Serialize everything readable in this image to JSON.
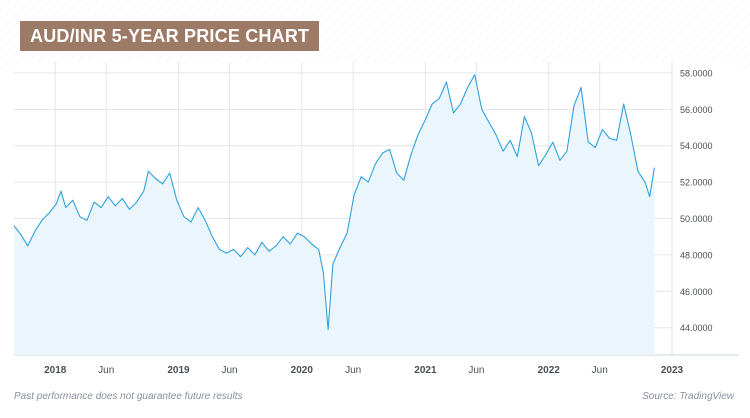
{
  "title": "AUD/INR 5-YEAR PRICE CHART",
  "footer": {
    "disclaimer": "Past performance does not guarantee future results",
    "source": "Source: TradingView"
  },
  "colors": {
    "badge": "#9c7a66",
    "line": "#2fa3de",
    "fill": "#eaf5fc",
    "grid": "#e3e6ea",
    "axis_text": "#4a4f57"
  },
  "chart_data": {
    "type": "area",
    "title": "AUD/INR 5-YEAR PRICE CHART",
    "xlabel": "",
    "ylabel": "",
    "grid": true,
    "ylim": [
      42.5,
      58.6
    ],
    "xlim": [
      "2017-09-01",
      "2023-01-01"
    ],
    "y_ticks": [
      "44.0000",
      "46.0000",
      "48.0000",
      "50.0000",
      "52.0000",
      "54.0000",
      "56.0000",
      "58.0000"
    ],
    "x_ticks": [
      {
        "date": "2018-01-01",
        "label": "2018",
        "bold": true
      },
      {
        "date": "2018-06-01",
        "label": "Jun",
        "bold": false
      },
      {
        "date": "2019-01-01",
        "label": "2019",
        "bold": true
      },
      {
        "date": "2019-06-01",
        "label": "Jun",
        "bold": false
      },
      {
        "date": "2020-01-01",
        "label": "2020",
        "bold": true
      },
      {
        "date": "2020-06-01",
        "label": "Jun",
        "bold": false
      },
      {
        "date": "2021-01-01",
        "label": "2021",
        "bold": true
      },
      {
        "date": "2021-06-01",
        "label": "Jun",
        "bold": false
      },
      {
        "date": "2022-01-01",
        "label": "2022",
        "bold": true
      },
      {
        "date": "2022-06-01",
        "label": "Jun",
        "bold": false
      },
      {
        "date": "2023-01-01",
        "label": "2023",
        "bold": true
      }
    ],
    "series": [
      {
        "points": [
          [
            "2017-09-01",
            49.6
          ],
          [
            "2017-09-22",
            49.1
          ],
          [
            "2017-10-12",
            48.5
          ],
          [
            "2017-11-02",
            49.3
          ],
          [
            "2017-11-23",
            49.9
          ],
          [
            "2017-12-14",
            50.3
          ],
          [
            "2018-01-04",
            50.8
          ],
          [
            "2018-01-18",
            51.5
          ],
          [
            "2018-02-01",
            50.6
          ],
          [
            "2018-02-22",
            51.0
          ],
          [
            "2018-03-15",
            50.1
          ],
          [
            "2018-04-05",
            49.9
          ],
          [
            "2018-04-26",
            50.9
          ],
          [
            "2018-05-17",
            50.6
          ],
          [
            "2018-06-07",
            51.2
          ],
          [
            "2018-06-28",
            50.7
          ],
          [
            "2018-07-19",
            51.1
          ],
          [
            "2018-08-09",
            50.5
          ],
          [
            "2018-08-30",
            50.9
          ],
          [
            "2018-09-20",
            51.5
          ],
          [
            "2018-10-04",
            52.6
          ],
          [
            "2018-10-25",
            52.2
          ],
          [
            "2018-11-15",
            51.9
          ],
          [
            "2018-12-06",
            52.5
          ],
          [
            "2018-12-27",
            51.0
          ],
          [
            "2019-01-17",
            50.1
          ],
          [
            "2019-02-07",
            49.8
          ],
          [
            "2019-02-28",
            50.6
          ],
          [
            "2019-03-21",
            49.9
          ],
          [
            "2019-04-11",
            49.0
          ],
          [
            "2019-05-02",
            48.3
          ],
          [
            "2019-05-23",
            48.1
          ],
          [
            "2019-06-13",
            48.3
          ],
          [
            "2019-07-04",
            47.9
          ],
          [
            "2019-07-25",
            48.4
          ],
          [
            "2019-08-15",
            48.0
          ],
          [
            "2019-09-05",
            48.7
          ],
          [
            "2019-09-26",
            48.2
          ],
          [
            "2019-10-17",
            48.5
          ],
          [
            "2019-11-07",
            49.0
          ],
          [
            "2019-11-28",
            48.6
          ],
          [
            "2019-12-19",
            49.2
          ],
          [
            "2020-01-09",
            49.0
          ],
          [
            "2020-01-30",
            48.6
          ],
          [
            "2020-02-20",
            48.3
          ],
          [
            "2020-03-05",
            47.0
          ],
          [
            "2020-03-19",
            43.9
          ],
          [
            "2020-04-02",
            47.5
          ],
          [
            "2020-04-23",
            48.4
          ],
          [
            "2020-05-14",
            49.2
          ],
          [
            "2020-06-04",
            51.3
          ],
          [
            "2020-06-25",
            52.3
          ],
          [
            "2020-07-16",
            52.0
          ],
          [
            "2020-08-06",
            53.0
          ],
          [
            "2020-08-27",
            53.6
          ],
          [
            "2020-09-17",
            53.8
          ],
          [
            "2020-10-08",
            52.5
          ],
          [
            "2020-10-29",
            52.1
          ],
          [
            "2020-11-19",
            53.5
          ],
          [
            "2020-12-10",
            54.6
          ],
          [
            "2020-12-31",
            55.4
          ],
          [
            "2021-01-21",
            56.3
          ],
          [
            "2021-02-11",
            56.6
          ],
          [
            "2021-03-04",
            57.5
          ],
          [
            "2021-03-25",
            55.8
          ],
          [
            "2021-04-15",
            56.3
          ],
          [
            "2021-05-06",
            57.2
          ],
          [
            "2021-05-27",
            57.9
          ],
          [
            "2021-06-17",
            56.0
          ],
          [
            "2021-07-08",
            55.3
          ],
          [
            "2021-07-29",
            54.6
          ],
          [
            "2021-08-19",
            53.7
          ],
          [
            "2021-09-09",
            54.3
          ],
          [
            "2021-09-30",
            53.4
          ],
          [
            "2021-10-21",
            55.6
          ],
          [
            "2021-11-11",
            54.7
          ],
          [
            "2021-12-02",
            52.9
          ],
          [
            "2021-12-23",
            53.5
          ],
          [
            "2022-01-13",
            54.2
          ],
          [
            "2022-02-03",
            53.2
          ],
          [
            "2022-02-24",
            53.7
          ],
          [
            "2022-03-17",
            56.2
          ],
          [
            "2022-04-07",
            57.2
          ],
          [
            "2022-04-28",
            54.2
          ],
          [
            "2022-05-19",
            53.9
          ],
          [
            "2022-06-09",
            54.9
          ],
          [
            "2022-06-30",
            54.4
          ],
          [
            "2022-07-21",
            54.3
          ],
          [
            "2022-08-11",
            56.3
          ],
          [
            "2022-09-01",
            54.6
          ],
          [
            "2022-09-22",
            52.6
          ],
          [
            "2022-10-13",
            52.0
          ],
          [
            "2022-10-27",
            51.2
          ],
          [
            "2022-11-10",
            52.8
          ]
        ]
      }
    ]
  }
}
